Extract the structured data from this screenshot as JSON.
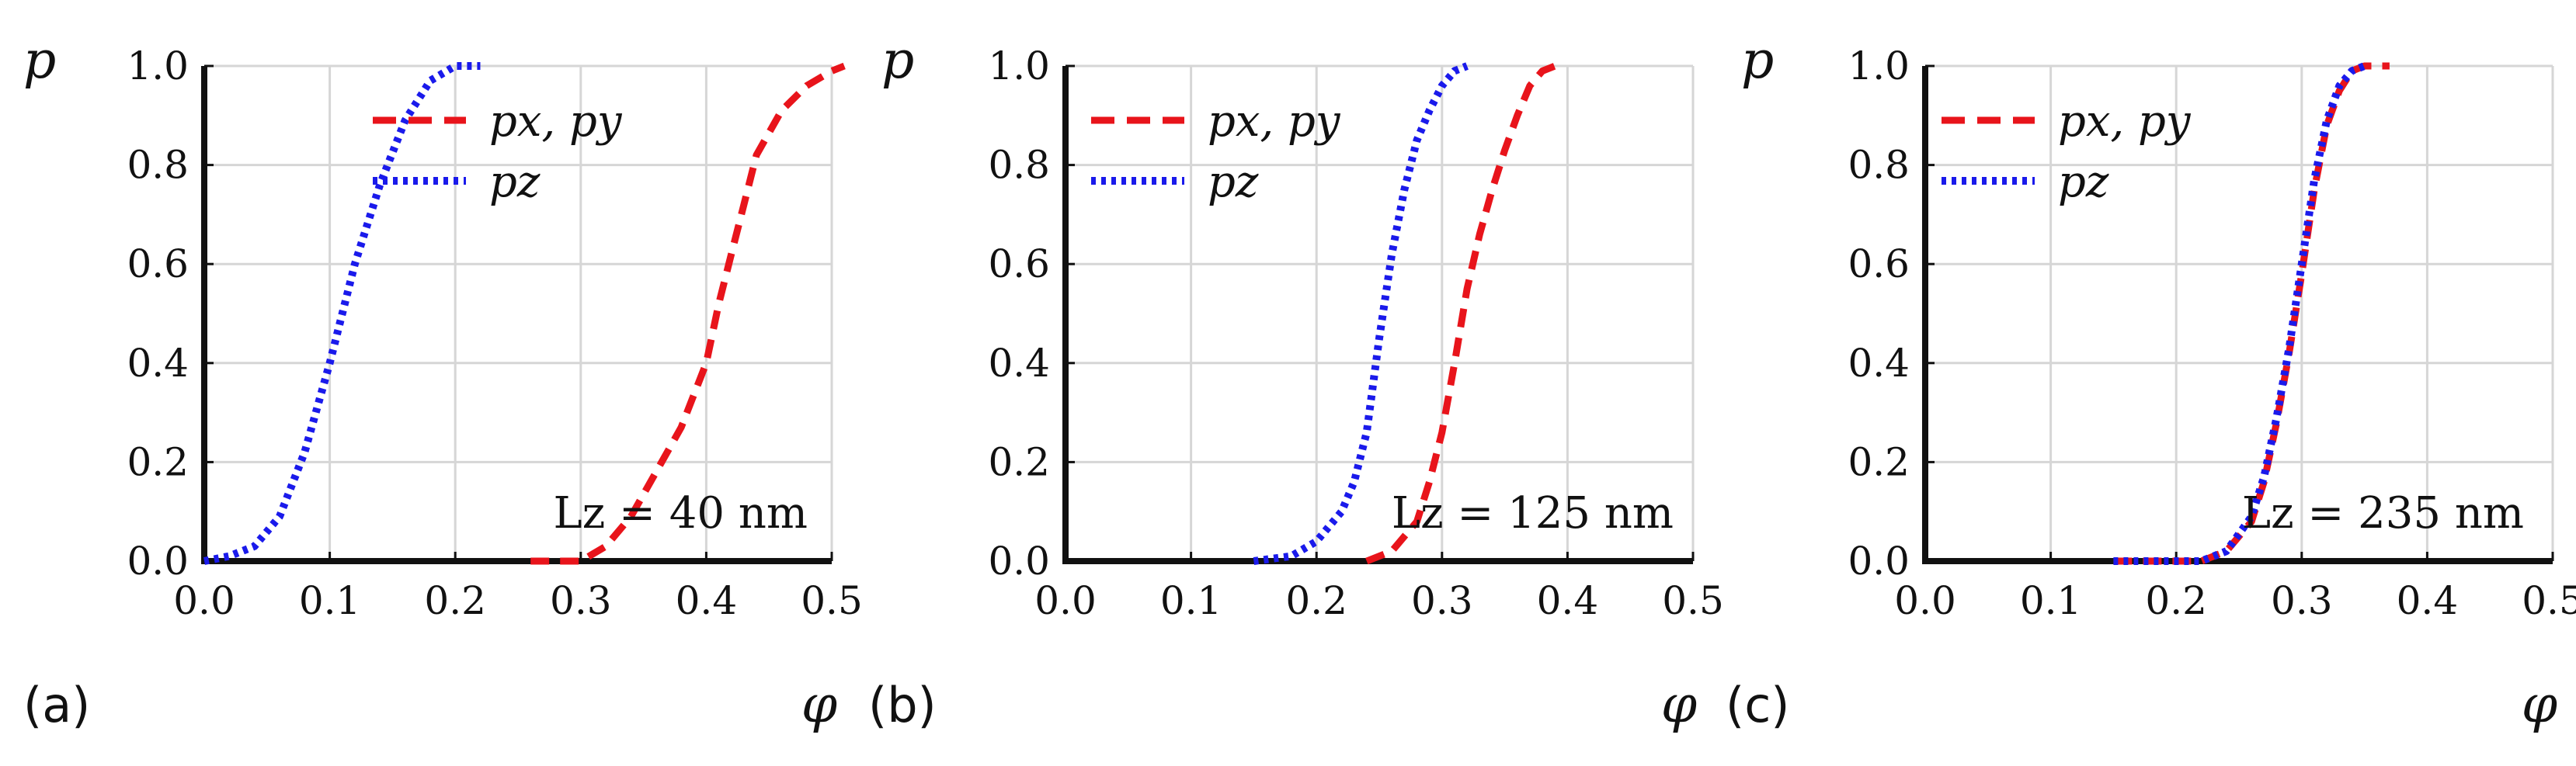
{
  "chart_data": [
    {
      "type": "line",
      "panel_label": "(a)",
      "xlabel": "φ",
      "ylabel": "p",
      "xlim": [
        0.0,
        0.5
      ],
      "ylim": [
        0.0,
        1.0
      ],
      "xticks": [
        "0.0",
        "0.1",
        "0.2",
        "0.3",
        "0.4",
        "0.5"
      ],
      "yticks": [
        "0.0",
        "0.2",
        "0.4",
        "0.6",
        "0.8",
        "1.0"
      ],
      "grid": true,
      "legend_position": "top-right",
      "annotation": "Lz = 40 nm",
      "series": [
        {
          "name": "px, py",
          "color": "#e8141b",
          "style": "dashed",
          "x": [
            0.26,
            0.3,
            0.32,
            0.34,
            0.36,
            0.38,
            0.4,
            0.41,
            0.42,
            0.43,
            0.44,
            0.46,
            0.48,
            0.5,
            0.51
          ],
          "y": [
            0.0,
            0.0,
            0.03,
            0.09,
            0.18,
            0.27,
            0.4,
            0.52,
            0.62,
            0.72,
            0.82,
            0.91,
            0.96,
            0.99,
            1.0
          ]
        },
        {
          "name": "pz",
          "color": "#1a1aeb",
          "style": "dotted",
          "x": [
            0.0,
            0.02,
            0.04,
            0.06,
            0.08,
            0.1,
            0.12,
            0.14,
            0.16,
            0.18,
            0.2,
            0.22
          ],
          "y": [
            0.0,
            0.01,
            0.03,
            0.09,
            0.22,
            0.4,
            0.6,
            0.76,
            0.89,
            0.97,
            1.0,
            1.0
          ]
        }
      ]
    },
    {
      "type": "line",
      "panel_label": "(b)",
      "xlabel": "φ",
      "ylabel": "p",
      "xlim": [
        0.0,
        0.5
      ],
      "ylim": [
        0.0,
        1.0
      ],
      "xticks": [
        "0.0",
        "0.1",
        "0.2",
        "0.3",
        "0.4",
        "0.5"
      ],
      "yticks": [
        "0.0",
        "0.2",
        "0.4",
        "0.6",
        "0.8",
        "1.0"
      ],
      "grid": true,
      "legend_position": "top-left",
      "annotation": "Lz = 125 nm",
      "series": [
        {
          "name": "px, py",
          "color": "#e8141b",
          "style": "dashed",
          "x": [
            0.24,
            0.26,
            0.28,
            0.29,
            0.3,
            0.31,
            0.32,
            0.33,
            0.34,
            0.35,
            0.36,
            0.37,
            0.38,
            0.39
          ],
          "y": [
            0.0,
            0.02,
            0.08,
            0.16,
            0.26,
            0.4,
            0.55,
            0.66,
            0.75,
            0.83,
            0.9,
            0.96,
            0.99,
            1.0
          ]
        },
        {
          "name": "pz",
          "color": "#1a1aeb",
          "style": "dotted",
          "x": [
            0.15,
            0.18,
            0.2,
            0.22,
            0.23,
            0.24,
            0.25,
            0.26,
            0.27,
            0.28,
            0.29,
            0.3,
            0.31,
            0.32
          ],
          "y": [
            0.0,
            0.01,
            0.04,
            0.1,
            0.16,
            0.26,
            0.45,
            0.62,
            0.75,
            0.85,
            0.91,
            0.96,
            0.99,
            1.0
          ]
        }
      ]
    },
    {
      "type": "line",
      "panel_label": "(c)",
      "xlabel": "φ",
      "ylabel": "p",
      "xlim": [
        0.0,
        0.5
      ],
      "ylim": [
        0.0,
        1.0
      ],
      "xticks": [
        "0.0",
        "0.1",
        "0.2",
        "0.3",
        "0.4",
        "0.5"
      ],
      "yticks": [
        "0.0",
        "0.2",
        "0.4",
        "0.6",
        "0.8",
        "1.0"
      ],
      "grid": true,
      "legend_position": "top-left",
      "annotation": "Lz = 235 nm",
      "series": [
        {
          "name": "px, py",
          "color": "#e8141b",
          "style": "dashed",
          "x": [
            0.15,
            0.22,
            0.24,
            0.26,
            0.27,
            0.28,
            0.29,
            0.3,
            0.31,
            0.32,
            0.33,
            0.34,
            0.35,
            0.37
          ],
          "y": [
            0.0,
            0.0,
            0.02,
            0.08,
            0.16,
            0.28,
            0.42,
            0.58,
            0.75,
            0.88,
            0.95,
            0.99,
            1.0,
            1.0
          ]
        },
        {
          "name": "pz",
          "color": "#1a1aeb",
          "style": "dotted",
          "x": [
            0.15,
            0.22,
            0.24,
            0.26,
            0.27,
            0.28,
            0.29,
            0.3,
            0.31,
            0.32,
            0.33,
            0.34,
            0.35
          ],
          "y": [
            0.0,
            0.0,
            0.02,
            0.09,
            0.17,
            0.29,
            0.43,
            0.6,
            0.77,
            0.89,
            0.96,
            0.99,
            1.0
          ]
        }
      ]
    }
  ]
}
